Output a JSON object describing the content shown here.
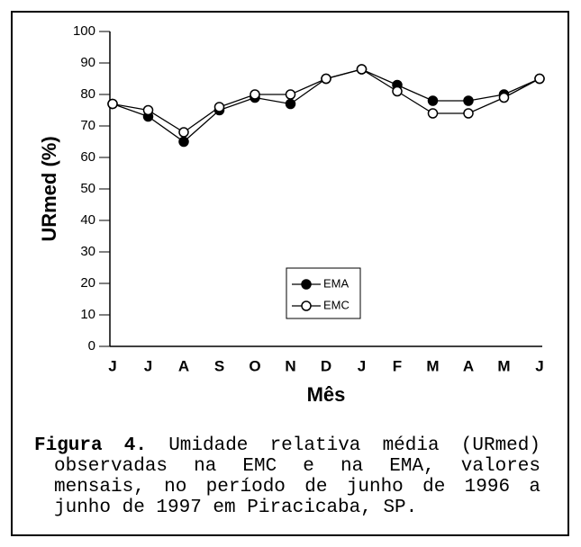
{
  "chart_data": {
    "type": "line",
    "y_label": "URmed (%)",
    "x_label": "Mês",
    "categories": [
      "J",
      "J",
      "A",
      "S",
      "O",
      "N",
      "D",
      "J",
      "F",
      "M",
      "A",
      "M",
      "J"
    ],
    "series": [
      {
        "name": "EMA",
        "color": "#000000",
        "marker": "filled",
        "values": [
          77,
          73,
          65,
          75,
          79,
          77,
          85,
          88,
          83,
          78,
          78,
          80,
          85
        ]
      },
      {
        "name": "EMC",
        "color": "#000000",
        "marker": "open",
        "values": [
          77,
          75,
          68,
          76,
          80,
          80,
          85,
          88,
          81,
          74,
          74,
          79,
          85
        ]
      }
    ],
    "ylim": [
      0,
      100
    ],
    "yticks": [
      0,
      10,
      20,
      30,
      40,
      50,
      60,
      70,
      80,
      90,
      100
    ],
    "grid": false
  },
  "caption": {
    "label": "Figura 4.",
    "text": "Umidade relativa média (URmed) observadas na EMC e na EMA, valores mensais, no período de junho de 1996 a junho de 1997 em Piracicaba, SP."
  }
}
